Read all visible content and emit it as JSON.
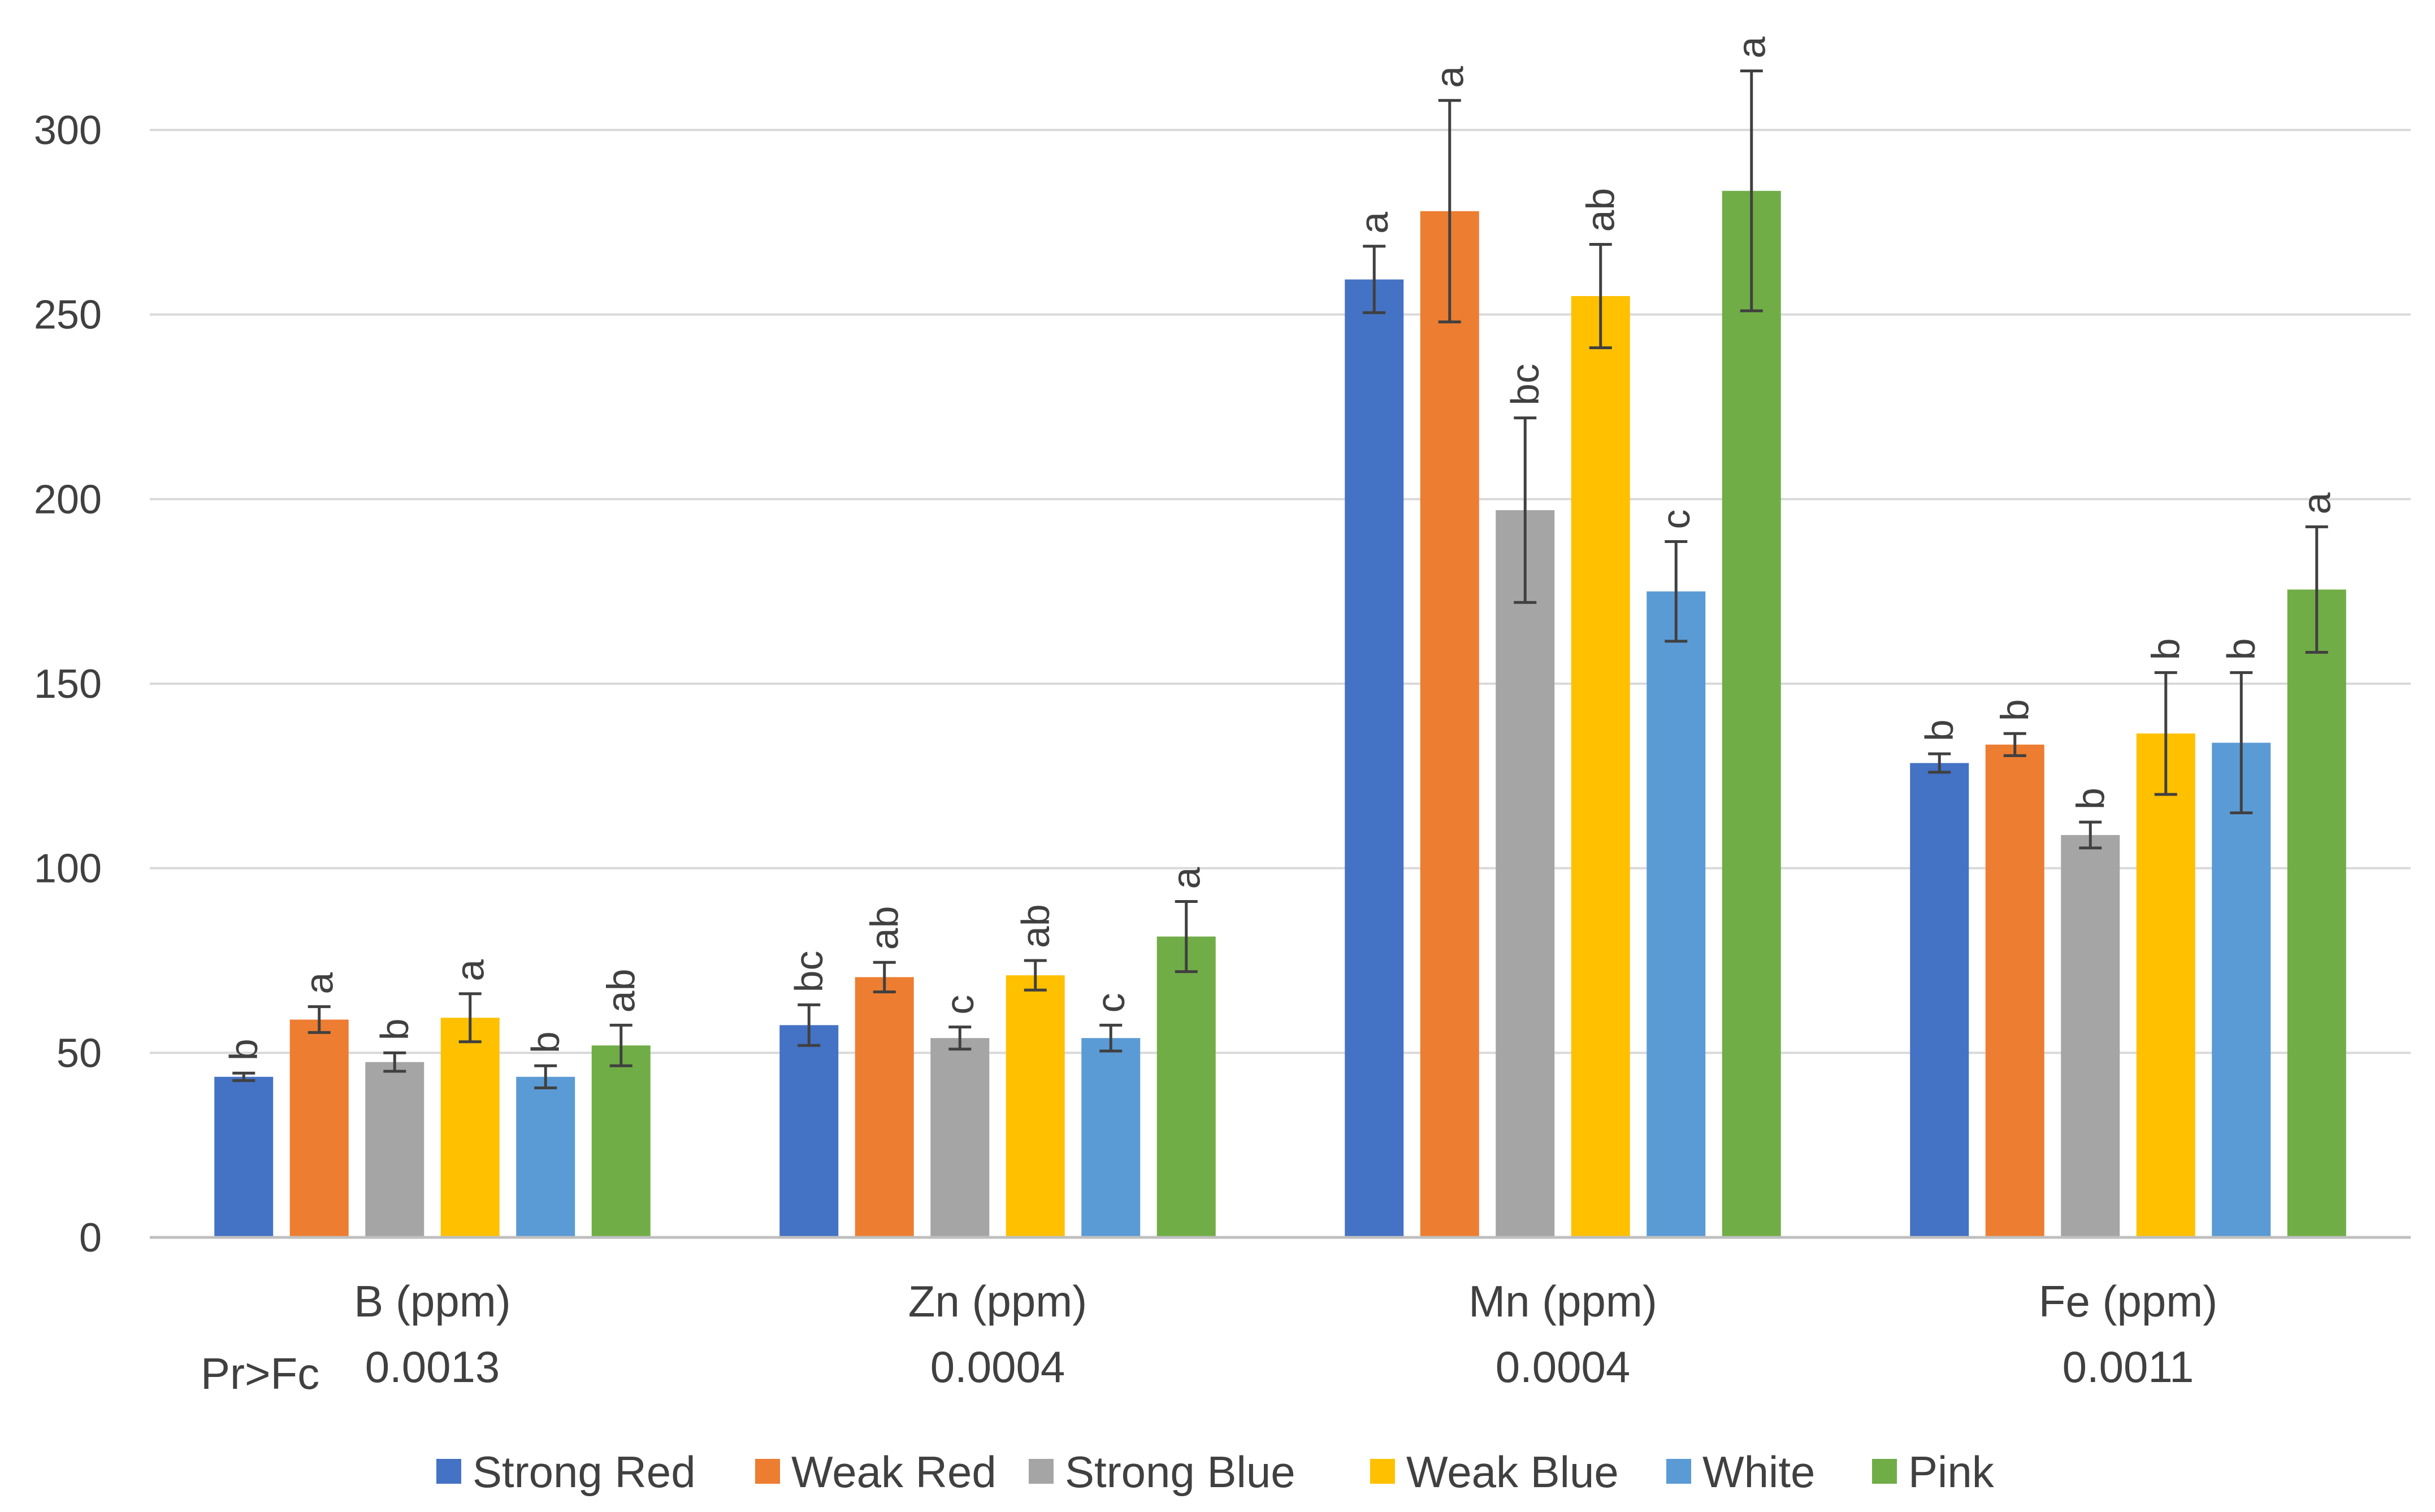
{
  "chart_data": {
    "type": "bar",
    "title": "",
    "xlabel": "",
    "ylabel": "",
    "ylim": [
      0,
      300
    ],
    "yticks": [
      0,
      50,
      100,
      150,
      200,
      250,
      300
    ],
    "grid": true,
    "legend_position": "bottom",
    "categories": [
      "B (ppm)",
      "Zn (ppm)",
      "Mn (ppm)",
      "Fe (ppm)"
    ],
    "p_label": "Pr>Fc",
    "p_values": [
      "0.0013",
      "0.0004",
      "0.0004",
      "0.0011"
    ],
    "series": [
      {
        "name": "Strong Red",
        "color": "#4472C4",
        "values": [
          43.5,
          57.5,
          259.5,
          128.5
        ],
        "errors": [
          1,
          5.5,
          9,
          2.5
        ],
        "letters": [
          "b",
          "bc",
          "a",
          "b"
        ]
      },
      {
        "name": "Weak Red",
        "color": "#ED7D31",
        "values": [
          59,
          70.5,
          278,
          133.5
        ],
        "errors": [
          3.5,
          4,
          30,
          3
        ],
        "letters": [
          "a",
          "ab",
          "a",
          "b"
        ]
      },
      {
        "name": "Strong Blue",
        "color": "#A5A5A5",
        "values": [
          47.5,
          54,
          197,
          109
        ],
        "errors": [
          2.5,
          3,
          25,
          3.5
        ],
        "letters": [
          "b",
          "c",
          "bc",
          "b"
        ]
      },
      {
        "name": "Weak Blue",
        "color": "#FFC000",
        "values": [
          59.5,
          71,
          255,
          136.5
        ],
        "errors": [
          6.5,
          4,
          14,
          16.5
        ],
        "letters": [
          "a",
          "ab",
          "ab",
          "b"
        ]
      },
      {
        "name": "White",
        "color": "#5B9BD5",
        "values": [
          43.5,
          54,
          175,
          134
        ],
        "errors": [
          3,
          3.5,
          13.5,
          19
        ],
        "letters": [
          "b",
          "c",
          "c",
          "b"
        ]
      },
      {
        "name": "Pink",
        "color": "#70AD47",
        "values": [
          52,
          81.5,
          283.5,
          175.5
        ],
        "errors": [
          5.5,
          9.5,
          32.5,
          17
        ],
        "letters": [
          "ab",
          "a",
          "a",
          "a"
        ]
      }
    ]
  }
}
